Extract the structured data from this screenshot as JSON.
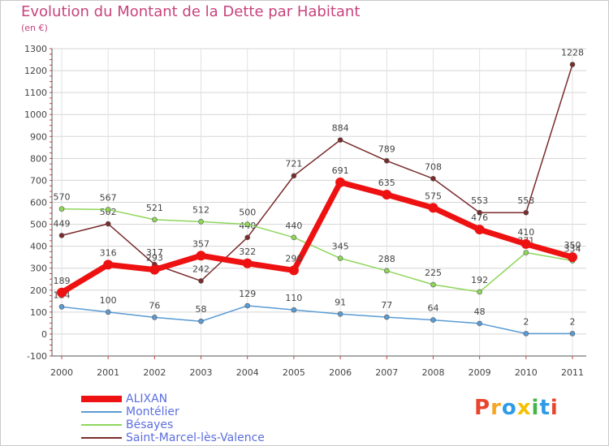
{
  "title": "Evolution du Montant de la Dette par Habitant",
  "subtitle": "(en €)",
  "logo": {
    "letters": [
      "P",
      "r",
      "o",
      "x",
      "i",
      "t",
      "i"
    ],
    "colors": [
      "#e8452f",
      "#f5a623",
      "#2e9be6",
      "#f5c000",
      "#44b649",
      "#2e9be6",
      "#e8452f"
    ]
  },
  "chart_data": {
    "type": "line",
    "x": [
      2000,
      2001,
      2002,
      2003,
      2004,
      2005,
      2006,
      2007,
      2008,
      2009,
      2010,
      2011
    ],
    "ylim": [
      -100,
      1300
    ],
    "yticks": [
      -100,
      0,
      100,
      200,
      300,
      400,
      500,
      600,
      700,
      800,
      900,
      1000,
      1100,
      1200,
      1300
    ],
    "grid": true,
    "legend": "bottom-left",
    "series": [
      {
        "name": "Saint-Marcel-lès-Valence",
        "color": "#7a2b2b",
        "values": [
          449,
          502,
          317,
          242,
          440,
          721,
          884,
          789,
          708,
          553,
          553,
          1228
        ],
        "labels": [
          "449",
          "502",
          "317",
          "242",
          "440",
          "721",
          "884",
          "789",
          "708",
          "553",
          "553",
          "1228"
        ]
      },
      {
        "name": "Bésayes",
        "color": "#8ed65a",
        "values": [
          570,
          567,
          521,
          512,
          500,
          440,
          345,
          288,
          225,
          192,
          371,
          334
        ],
        "labels": [
          "570",
          "567",
          "521",
          "512",
          "500",
          "440",
          "345",
          "288",
          "225",
          "192",
          "371",
          "334"
        ]
      },
      {
        "name": "Montélier",
        "color": "#5a9bd4",
        "values": [
          124,
          100,
          76,
          58,
          129,
          110,
          91,
          77,
          64,
          48,
          2,
          2
        ],
        "labels": [
          "124",
          "100",
          "76",
          "58",
          "129",
          "110",
          "91",
          "77",
          "64",
          "48",
          "2",
          "2"
        ]
      },
      {
        "name": "ALIXAN",
        "color": "#ee1111",
        "values": [
          189,
          316,
          293,
          357,
          322,
          290,
          691,
          635,
          575,
          476,
          410,
          350
        ],
        "labels": [
          "189",
          "316",
          "293",
          "357",
          "322",
          "290",
          "691",
          "635",
          "575",
          "476",
          "410",
          "350"
        ]
      }
    ]
  }
}
